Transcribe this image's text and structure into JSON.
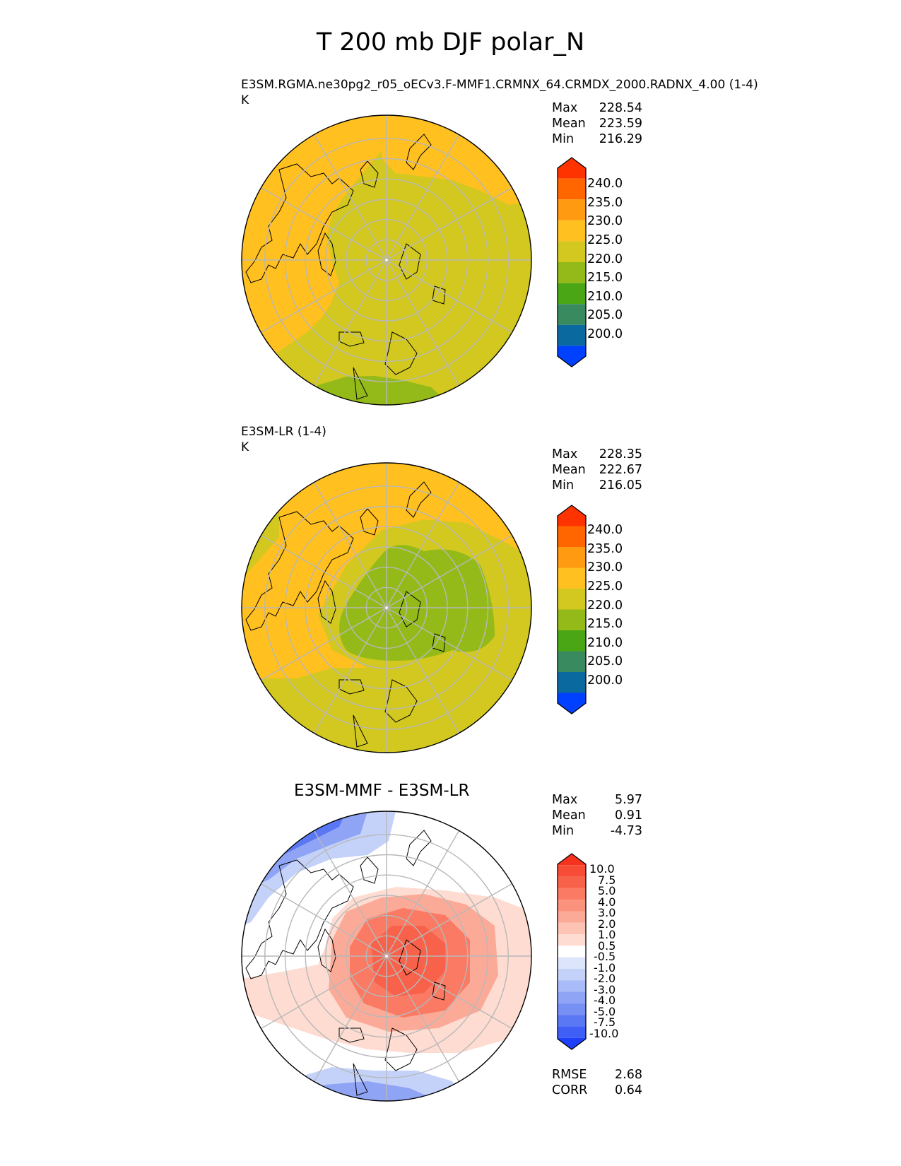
{
  "title": "T 200 mb DJF polar_N",
  "panels": [
    {
      "label": "E3SM.RGMA.ne30pg2_r05_oECv3.F-MMF1.CRMNX_64.CRMDX_2000.RADNX_4.00 (1-4)",
      "units": "K",
      "stats": [
        {
          "name": "Max",
          "value": "228.54"
        },
        {
          "name": "Mean",
          "value": "223.59"
        },
        {
          "name": "Min",
          "value": "216.29"
        }
      ]
    },
    {
      "label": "E3SM-LR (1-4)",
      "units": "K",
      "stats": [
        {
          "name": "Max",
          "value": "228.35"
        },
        {
          "name": "Mean",
          "value": "222.67"
        },
        {
          "name": "Min",
          "value": "216.05"
        }
      ]
    },
    {
      "title": "E3SM-MMF - E3SM-LR",
      "stats": [
        {
          "name": "Max",
          "value": "5.97"
        },
        {
          "name": "Mean",
          "value": "0.91"
        },
        {
          "name": "Min",
          "value": "-4.73"
        }
      ],
      "metrics": [
        {
          "name": "RMSE",
          "value": "2.68"
        },
        {
          "name": "CORR",
          "value": "0.64"
        }
      ]
    }
  ],
  "colorbars": {
    "field": {
      "ticks": [
        "240.0",
        "235.0",
        "230.0",
        "225.0",
        "220.0",
        "215.0",
        "210.0",
        "205.0",
        "200.0"
      ],
      "colors": [
        "#ff3300",
        "#ff6600",
        "#ff9a11",
        "#ffc020",
        "#d2c820",
        "#93ba18",
        "#4aa614",
        "#3a8a60",
        "#0a6aa0",
        "#0040ff"
      ]
    },
    "diff": {
      "ticks": [
        "10.0",
        "7.5",
        "5.0",
        "4.0",
        "3.0",
        "2.0",
        "1.0",
        "0.5",
        "-0.5",
        "-1.0",
        "-2.0",
        "-3.0",
        "-4.0",
        "-5.0",
        "-7.5",
        "-10.0"
      ],
      "colors": [
        "#f5321e",
        "#f74c35",
        "#f8624a",
        "#fa7a64",
        "#fb927e",
        "#fcaa98",
        "#fdc3b4",
        "#fedcd2",
        "#ffffff",
        "#dde5fc",
        "#c4d2fa",
        "#a9bbf8",
        "#8fa4f5",
        "#7790f4",
        "#5a77f4",
        "#3e5ef6",
        "#1f40fb"
      ]
    }
  },
  "chart_data": [
    {
      "type": "heatmap",
      "projection": "north polar stereographic",
      "label": "E3SM.RGMA.ne30pg2_r05_oECv3.F-MMF1.CRMNX_64.CRMDX_2000.RADNX_4.00 (1-4)",
      "units": "K",
      "levels": [
        200,
        205,
        210,
        215,
        220,
        225,
        230,
        235,
        240
      ],
      "max": 228.54,
      "mean": 223.59,
      "min": 216.29,
      "grid": true
    },
    {
      "type": "heatmap",
      "projection": "north polar stereographic",
      "label": "E3SM-LR (1-4)",
      "units": "K",
      "levels": [
        200,
        205,
        210,
        215,
        220,
        225,
        230,
        235,
        240
      ],
      "max": 228.35,
      "mean": 222.67,
      "min": 216.05,
      "grid": true
    },
    {
      "type": "heatmap",
      "projection": "north polar stereographic",
      "title": "E3SM-MMF - E3SM-LR",
      "levels": [
        -10,
        -7.5,
        -5,
        -4,
        -3,
        -2,
        -1,
        -0.5,
        0.5,
        1,
        2,
        3,
        4,
        5,
        7.5,
        10
      ],
      "max": 5.97,
      "mean": 0.91,
      "min": -4.73,
      "rmse": 2.68,
      "corr": 0.64,
      "grid": true
    }
  ]
}
